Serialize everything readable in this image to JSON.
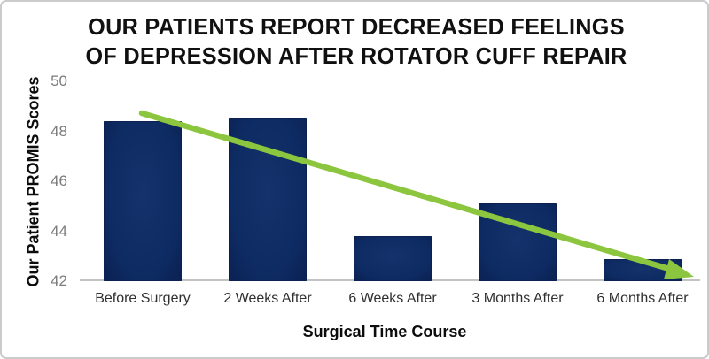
{
  "frame": {
    "background": "#ffffff",
    "border_color": "#cbcbcb"
  },
  "chart_data": {
    "type": "bar",
    "title": "OUR PATIENTS REPORT DECREASED FEELINGS OF DEPRESSION AFTER ROTATOR CUFF REPAIR",
    "title_lines": [
      "OUR PATIENTS REPORT DECREASED FEELINGS",
      "OF DEPRESSION AFTER ROTATOR CUFF REPAIR"
    ],
    "categories": [
      "Before Surgery",
      "2 Weeks After",
      "6 Weeks After",
      "3 Months After",
      "6 Months After"
    ],
    "values": [
      48.4,
      48.5,
      43.8,
      45.1,
      42.9
    ],
    "xlabel": "Surgical Time Course",
    "ylabel": "Our Patient PROMIS Scores",
    "ylim": [
      42,
      50
    ],
    "yticks": [
      50,
      48,
      46,
      44,
      42
    ],
    "grid": false,
    "legend": false,
    "colors": {
      "bar_fill": "#0e2b63",
      "bar_fill_center": "#15326c",
      "bar_edge": "#0a2152",
      "axis_line": "#c3c3c3",
      "y_tick_text": "#7b7b7b",
      "x_tick_text": "#2f2f2f",
      "title_text": "#101010",
      "trend_arrow": "#8cc63f"
    },
    "annotations": [
      {
        "kind": "trend-arrow",
        "direction": "decreasing",
        "color": "#8cc63f"
      }
    ]
  }
}
